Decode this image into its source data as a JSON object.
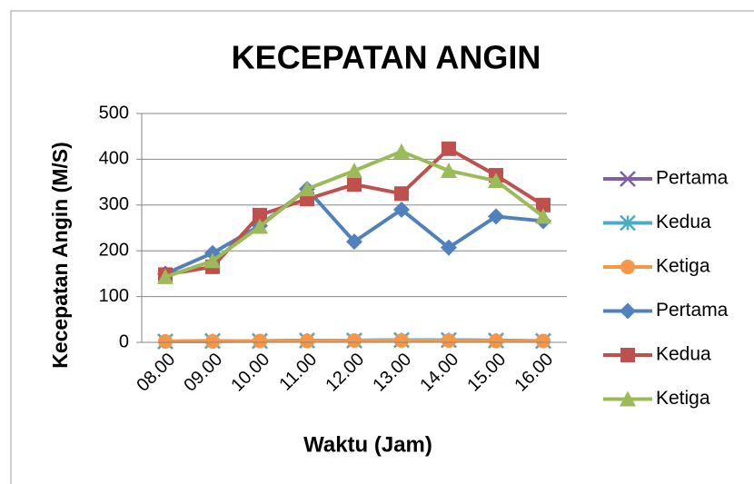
{
  "chart_data": {
    "type": "line",
    "title": "KECEPATAN ANGIN",
    "x_label": "Waktu (Jam)",
    "y_label": "Kecepatan Angin (M/S)",
    "categories": [
      "08.00",
      "09.00",
      "10.00",
      "11.00",
      "12.00",
      "13.00",
      "14.00",
      "15.00",
      "16.00"
    ],
    "series": [
      {
        "name": "Pertama",
        "color": "#7f5fa8",
        "marker": "x",
        "values": [
          2,
          3,
          3,
          4,
          4,
          5,
          5,
          4,
          3
        ]
      },
      {
        "name": "Kedua",
        "color": "#4bacc6",
        "marker": "star",
        "values": [
          2,
          3,
          3,
          4,
          4,
          5,
          5,
          4,
          3
        ]
      },
      {
        "name": "Ketiga",
        "color": "#f79646",
        "marker": "circle",
        "values": [
          2,
          2,
          3,
          3,
          4,
          4,
          4,
          3,
          3
        ]
      },
      {
        "name": "Pertama",
        "color": "#4f81bd",
        "marker": "diamond",
        "values": [
          150,
          195,
          255,
          335,
          220,
          290,
          207,
          275,
          265
        ]
      },
      {
        "name": "Kedua",
        "color": "#c0504d",
        "marker": "square",
        "values": [
          148,
          165,
          278,
          313,
          345,
          325,
          423,
          365,
          300
        ]
      },
      {
        "name": "Ketiga",
        "color": "#9bbb59",
        "marker": "triangle",
        "values": [
          143,
          178,
          253,
          335,
          375,
          417,
          375,
          353,
          275
        ]
      }
    ],
    "ylim": [
      0,
      500
    ],
    "yticks": [
      0,
      100,
      200,
      300,
      400,
      500
    ],
    "grid": true,
    "legend": "right"
  }
}
